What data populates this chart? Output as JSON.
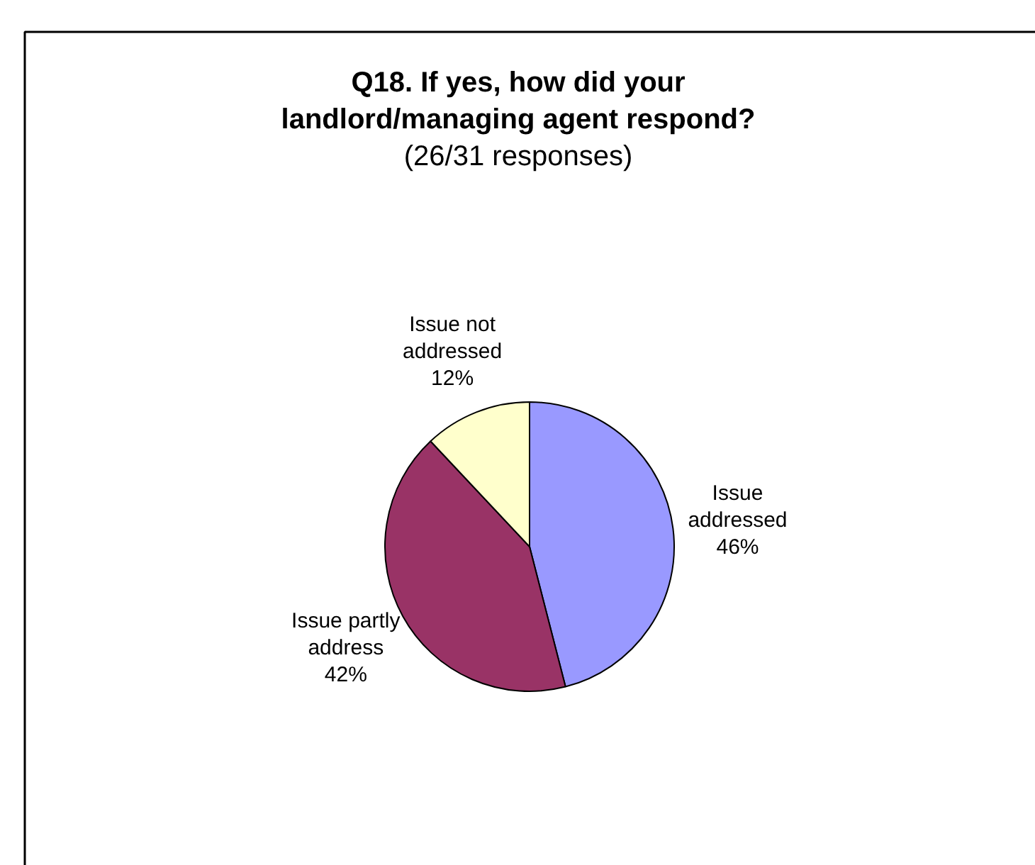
{
  "chart_data": {
    "type": "pie",
    "title": "Q18. If yes, how did your landlord/managing agent respond?",
    "subtitle": "(26/31 responses)",
    "categories": [
      "Issue addressed",
      "Issue partly address",
      "Issue not addressed"
    ],
    "values": [
      46,
      42,
      12
    ],
    "colors": [
      "#9999ff",
      "#993366",
      "#ffffcc"
    ],
    "value_labels": [
      "46%",
      "42%",
      "12%"
    ]
  }
}
